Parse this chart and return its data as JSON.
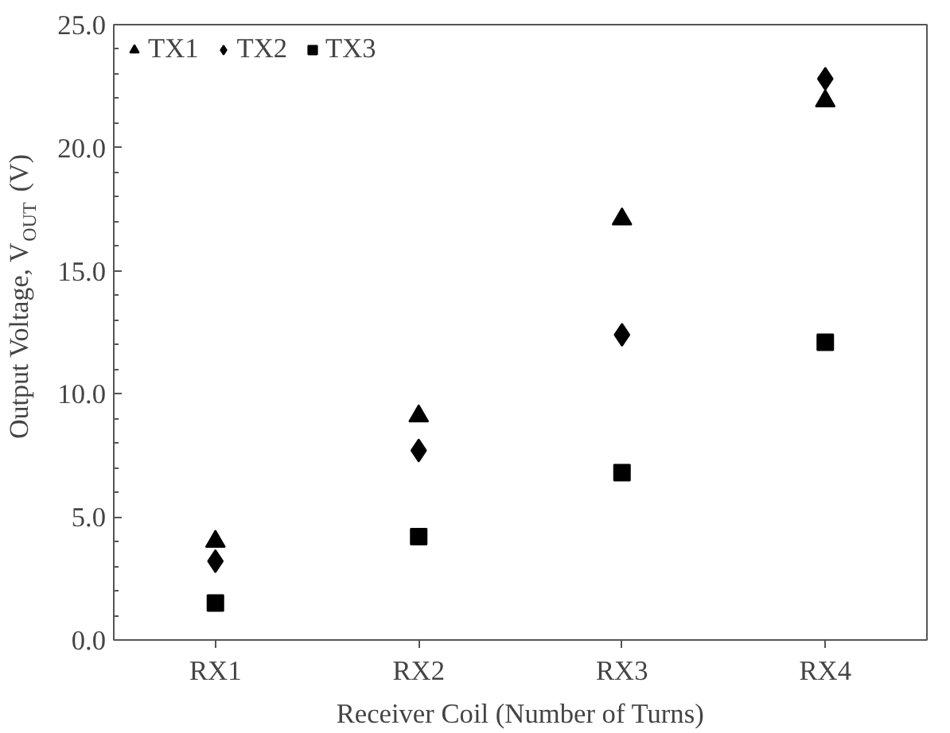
{
  "chart_data": {
    "type": "scatter",
    "xlabel": "Receiver Coil (Number of Turns)",
    "ylabel": "Output Voltage, V$_{OUT}$ (V)",
    "categories": [
      "RX1",
      "RX2",
      "RX3",
      "RX4"
    ],
    "series": [
      {
        "name": "TX1",
        "color": "#000000",
        "marker": "triangle",
        "values": [
          4.0,
          9.1,
          17.1,
          21.9
        ]
      },
      {
        "name": "TX2",
        "color": "#000000",
        "marker": "diamond",
        "values": [
          3.2,
          7.7,
          12.4,
          22.8
        ]
      },
      {
        "name": "TX3",
        "color": "#000000",
        "marker": "square",
        "values": [
          1.5,
          4.2,
          6.8,
          12.1
        ]
      }
    ],
    "ylim": [
      0,
      25
    ],
    "yticks": [
      {
        "value": 0,
        "label": "0.0"
      },
      {
        "value": 5,
        "label": "5.0"
      },
      {
        "value": 10,
        "label": "10.0"
      },
      {
        "value": 15,
        "label": "15.0"
      },
      {
        "value": 20,
        "label": "20.0"
      },
      {
        "value": 25,
        "label": "25.0"
      }
    ],
    "grid": false,
    "legend": "top left"
  }
}
